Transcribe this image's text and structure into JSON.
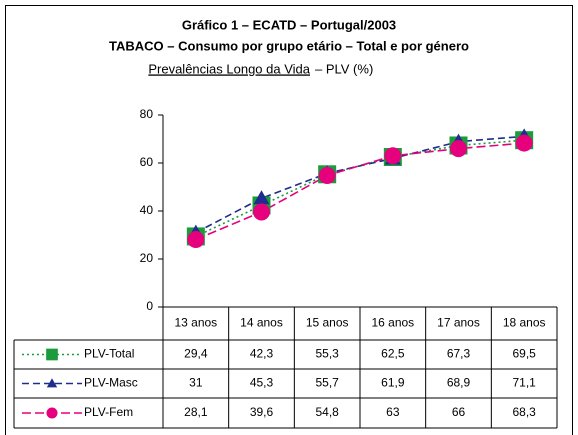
{
  "chart_data": {
    "type": "line",
    "title": "Gráfico 1 – ECATD – Portugal/2003",
    "subtitle": "TABACO – Consumo por grupo etário – Total e por género",
    "y_label": [
      "Prevalências Longo da Vida",
      "– PLV (%)"
    ],
    "categories": [
      "13 anos",
      "14 anos",
      "15 anos",
      "16 anos",
      "17 anos",
      "18 anos"
    ],
    "ylim": [
      0,
      80
    ],
    "yticks": [
      0,
      20,
      40,
      60,
      80
    ],
    "grid": false,
    "series": [
      {
        "name": "PLV-Total",
        "color": "#1a9c3c",
        "marker": "square",
        "dash": "2,3",
        "values": [
          29.4,
          42.3,
          55.3,
          62.5,
          67.3,
          69.5
        ],
        "value_labels": [
          "29,4",
          "42,3",
          "55,3",
          "62,5",
          "67,3",
          "69,5"
        ]
      },
      {
        "name": "PLV-Masc",
        "color": "#1f2d8c",
        "marker": "triangle",
        "dash": "7,4",
        "values": [
          31,
          45.3,
          55.7,
          61.9,
          68.9,
          71.1
        ],
        "value_labels": [
          "31",
          "45,3",
          "55,7",
          "61,9",
          "68,9",
          "71,1"
        ]
      },
      {
        "name": "PLV-Fem",
        "color": "#e6007e",
        "marker": "circle",
        "dash": "9,4",
        "values": [
          28.1,
          39.6,
          54.8,
          63,
          66,
          68.3
        ],
        "value_labels": [
          "28,1",
          "39,6",
          "54,8",
          "63",
          "66",
          "68,3"
        ]
      }
    ]
  }
}
